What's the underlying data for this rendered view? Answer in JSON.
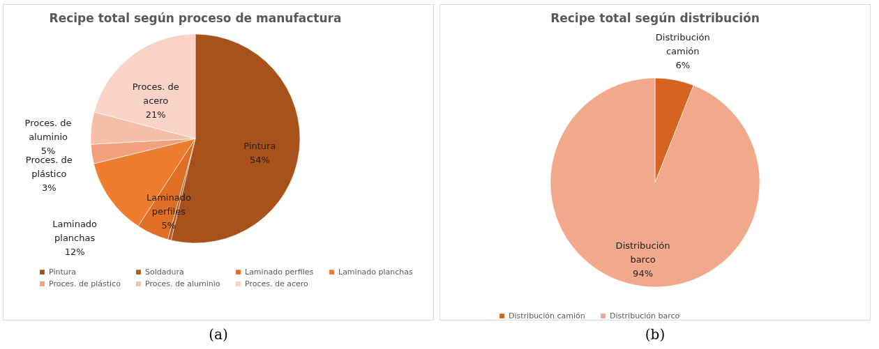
{
  "chart_data": [
    {
      "type": "pie",
      "title": "Recipe total según proceso de manufactura",
      "categories": [
        "Pintura",
        "Soldadura",
        "Laminado perfiles",
        "Laminado planchas",
        "Proces. de plástico",
        "Proces. de aluminio",
        "Proces. de acero"
      ],
      "values": [
        54,
        0.5,
        5,
        12,
        3,
        5,
        21
      ],
      "value_labels": [
        "54%",
        null,
        "5%",
        "12%",
        "3%",
        "5%",
        "21%"
      ],
      "colors": [
        "#a9511a",
        "#b85a1e",
        "#df6f25",
        "#ee7d30",
        "#f3a07c",
        "#f6bfa9",
        "#f8d3c6"
      ],
      "legend": "bottom",
      "annotations": [
        "(a)"
      ]
    },
    {
      "type": "pie",
      "title": "Recipe total según distribución",
      "categories": [
        "Distribución camión",
        "Distribución barco"
      ],
      "values": [
        6,
        94
      ],
      "value_labels": [
        "6%",
        "94%"
      ],
      "colors": [
        "#d4641f",
        "#f2a88a"
      ],
      "legend": "bottom",
      "annotations": [
        "(b)"
      ]
    }
  ]
}
